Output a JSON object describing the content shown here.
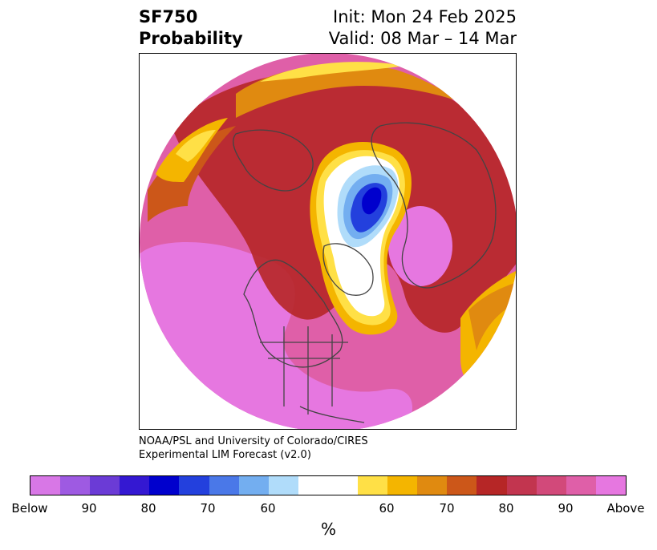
{
  "title": {
    "left_line1": "SF750",
    "left_line2": "Probability",
    "right_line1": "Init: Mon 24 Feb 2025",
    "right_line2": "Valid: 08 Mar – 14 Mar"
  },
  "credit": {
    "line1": "NOAA/PSL and University of Colorado/CIRES",
    "line2": "Experimental LIM Forecast (v2.0)"
  },
  "colorbar": {
    "colors": [
      "#d877e6",
      "#9e5ae2",
      "#6b3bd6",
      "#3418d2",
      "#0000cd",
      "#2340dd",
      "#4a78e8",
      "#73aef0",
      "#b0dcfa",
      "#ffffff",
      "#ffffff",
      "#ffe046",
      "#f4b500",
      "#e08a10",
      "#cc5719",
      "#b62626",
      "#c2354f",
      "#d2497a",
      "#df5fa8",
      "#e677e0"
    ],
    "tick_labels": [
      "Below",
      "90",
      "80",
      "70",
      "60",
      "60",
      "70",
      "80",
      "90",
      "Above"
    ],
    "unit": "%"
  },
  "map": {
    "projection": "north-polar-stereographic",
    "background_anomaly": "above",
    "below_region": "arctic-ocean-and-canadian-archipelago"
  }
}
